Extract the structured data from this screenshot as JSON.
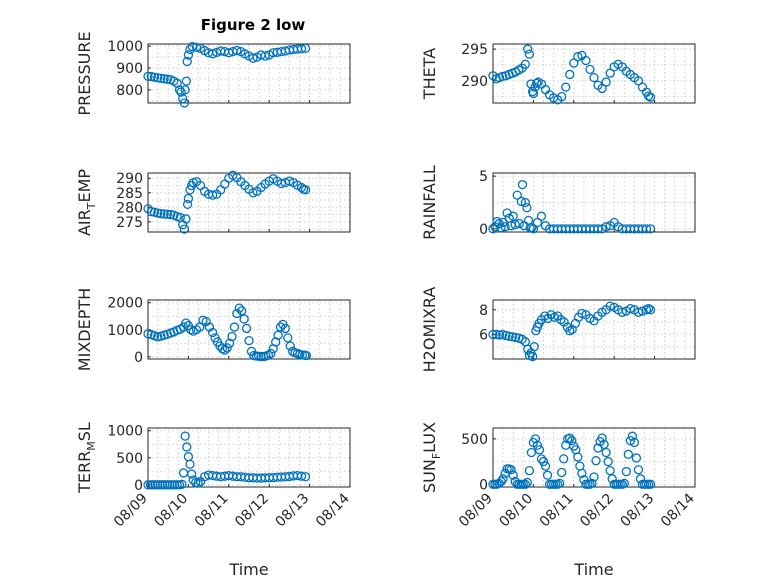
{
  "figure": {
    "title": "Figure 2 low",
    "marker_color": "#0072bd"
  },
  "chart_data": [
    {
      "type": "scatter",
      "id": "pressure",
      "title": "Figure 2 low",
      "ylabel": "PRESSURE",
      "xlabel": "",
      "xlim": [
        0,
        5
      ],
      "ylim": [
        740,
        1010
      ],
      "yticks": [
        800,
        900,
        1000
      ],
      "xticks": [
        0,
        1,
        2,
        3,
        4,
        5
      ],
      "xtick_labels": [
        "08/09",
        "08/10",
        "08/11",
        "08/12",
        "08/13",
        "08/14"
      ],
      "x": [
        0.0,
        0.08,
        0.16,
        0.24,
        0.32,
        0.4,
        0.48,
        0.56,
        0.64,
        0.72,
        0.78,
        0.82,
        0.86,
        0.9,
        0.92,
        0.95,
        0.97,
        1.0,
        1.04,
        1.1,
        1.2,
        1.3,
        1.4,
        1.5,
        1.6,
        1.7,
        1.8,
        1.9,
        2.0,
        2.1,
        2.2,
        2.3,
        2.4,
        2.5,
        2.6,
        2.7,
        2.8,
        2.9,
        3.0,
        3.1,
        3.2,
        3.3,
        3.4,
        3.5,
        3.6,
        3.7,
        3.8,
        3.9
      ],
      "y": [
        862,
        861,
        858,
        855,
        853,
        851,
        849,
        847,
        840,
        830,
        800,
        790,
        760,
        740,
        800,
        840,
        930,
        960,
        985,
        998,
        995,
        990,
        980,
        970,
        965,
        972,
        978,
        975,
        970,
        975,
        980,
        975,
        965,
        955,
        945,
        950,
        960,
        955,
        960,
        970,
        972,
        975,
        978,
        982,
        985,
        987,
        988,
        990
      ]
    },
    {
      "type": "scatter",
      "id": "theta",
      "ylabel": "THETA",
      "xlabel": "",
      "xlim": [
        0,
        5
      ],
      "ylim": [
        286.5,
        295.8
      ],
      "yticks": [
        290,
        295
      ],
      "xticks": [
        0,
        1,
        2,
        3,
        4,
        5
      ],
      "xtick_labels": [
        "08/09",
        "08/10",
        "08/11",
        "08/12",
        "08/13",
        "08/14"
      ],
      "x": [
        0.0,
        0.08,
        0.16,
        0.24,
        0.32,
        0.4,
        0.48,
        0.56,
        0.64,
        0.72,
        0.8,
        0.86,
        0.9,
        0.94,
        0.98,
        1.0,
        1.04,
        1.08,
        1.12,
        1.2,
        1.3,
        1.4,
        1.5,
        1.6,
        1.7,
        1.8,
        1.9,
        2.0,
        2.1,
        2.2,
        2.3,
        2.4,
        2.5,
        2.6,
        2.7,
        2.8,
        2.9,
        3.0,
        3.1,
        3.2,
        3.3,
        3.4,
        3.5,
        3.6,
        3.7,
        3.8,
        3.85,
        3.9
      ],
      "y": [
        290.8,
        290.3,
        290.5,
        290.7,
        290.8,
        291.0,
        291.2,
        291.4,
        291.7,
        292.0,
        292.6,
        295.0,
        294.2,
        289.5,
        288.3,
        288.0,
        289.0,
        289.6,
        289.8,
        289.5,
        288.6,
        287.8,
        287.3,
        287.0,
        287.5,
        289.0,
        291.0,
        292.8,
        293.8,
        294.0,
        293.2,
        291.8,
        290.5,
        289.3,
        288.8,
        289.8,
        291.2,
        292.2,
        292.6,
        292.2,
        291.5,
        291.0,
        290.5,
        290.0,
        289.0,
        288.2,
        287.6,
        287.4
      ]
    },
    {
      "type": "scatter",
      "id": "air_temp",
      "ylabel_main": "AIR",
      "ylabel_sub": "T",
      "ylabel_rest": "EMP",
      "xlabel": "",
      "xlim": [
        0,
        5
      ],
      "ylim": [
        271.5,
        291.8
      ],
      "yticks": [
        275,
        280,
        285,
        290
      ],
      "xticks": [
        0,
        1,
        2,
        3,
        4,
        5
      ],
      "xtick_labels": [
        "08/09",
        "08/10",
        "08/11",
        "08/12",
        "08/13",
        "08/14"
      ],
      "x": [
        0.0,
        0.08,
        0.16,
        0.24,
        0.32,
        0.4,
        0.48,
        0.56,
        0.64,
        0.72,
        0.8,
        0.86,
        0.9,
        0.94,
        0.98,
        1.0,
        1.04,
        1.08,
        1.12,
        1.2,
        1.3,
        1.4,
        1.5,
        1.6,
        1.7,
        1.8,
        1.9,
        2.0,
        2.1,
        2.2,
        2.3,
        2.4,
        2.5,
        2.6,
        2.7,
        2.8,
        2.9,
        3.0,
        3.1,
        3.2,
        3.3,
        3.4,
        3.5,
        3.6,
        3.7,
        3.8,
        3.85,
        3.9
      ],
      "y": [
        279.5,
        278.5,
        278.3,
        278.0,
        277.8,
        277.7,
        277.6,
        277.5,
        277.3,
        276.8,
        276.5,
        274.0,
        272.5,
        276.0,
        281.0,
        283.0,
        286.0,
        287.5,
        288.5,
        288.8,
        287.5,
        285.5,
        284.5,
        284.2,
        284.5,
        286.0,
        288.0,
        290.0,
        291.0,
        290.2,
        288.8,
        287.5,
        286.2,
        285.0,
        285.5,
        286.8,
        288.0,
        289.0,
        289.8,
        289.0,
        288.2,
        288.5,
        289.0,
        288.5,
        287.6,
        286.8,
        286.2,
        286.0
      ]
    },
    {
      "type": "scatter",
      "id": "rainfall",
      "ylabel": "RAINFALL",
      "xlabel": "",
      "xlim": [
        0,
        5
      ],
      "ylim": [
        -0.3,
        5.3
      ],
      "yticks": [
        0,
        5
      ],
      "xticks": [
        0,
        1,
        2,
        3,
        4,
        5
      ],
      "xtick_labels": [
        "08/09",
        "08/10",
        "08/11",
        "08/12",
        "08/13",
        "08/14"
      ],
      "x": [
        0.0,
        0.05,
        0.1,
        0.15,
        0.2,
        0.25,
        0.3,
        0.35,
        0.4,
        0.45,
        0.5,
        0.55,
        0.6,
        0.65,
        0.7,
        0.73,
        0.77,
        0.8,
        0.84,
        0.88,
        0.92,
        0.96,
        1.0,
        1.1,
        1.2,
        1.3,
        1.4,
        1.5,
        1.6,
        1.7,
        1.8,
        1.9,
        2.0,
        2.1,
        2.2,
        2.3,
        2.4,
        2.5,
        2.6,
        2.7,
        2.8,
        2.9,
        3.0,
        3.1,
        3.2,
        3.3,
        3.4,
        3.5,
        3.6,
        3.7,
        3.8,
        3.9
      ],
      "y": [
        0.0,
        0.2,
        0.7,
        0.5,
        0.1,
        0.6,
        0.2,
        1.5,
        1.0,
        0.3,
        1.2,
        0.4,
        3.2,
        0.5,
        2.6,
        4.2,
        0.3,
        2.5,
        2.0,
        0.8,
        0.1,
        0.1,
        0.0,
        0.6,
        1.2,
        0.3,
        0.0,
        0.0,
        0.0,
        0.0,
        0.0,
        0.0,
        0.0,
        0.0,
        0.0,
        0.0,
        0.0,
        0.0,
        0.0,
        0.0,
        0.2,
        0.3,
        0.6,
        0.2,
        0.0,
        0.0,
        0.0,
        0.0,
        0.0,
        0.0,
        0.0,
        0.0
      ]
    },
    {
      "type": "scatter",
      "id": "mixdepth",
      "ylabel": "MIXDEPTH",
      "xlabel": "",
      "xlim": [
        0,
        5
      ],
      "ylim": [
        -80,
        2100
      ],
      "yticks": [
        0,
        1000,
        2000
      ],
      "xticks": [
        0,
        1,
        2,
        3,
        4,
        5
      ],
      "xtick_labels": [
        "08/09",
        "08/10",
        "08/11",
        "08/12",
        "08/13",
        "08/14"
      ],
      "x": [
        0.0,
        0.08,
        0.16,
        0.24,
        0.32,
        0.4,
        0.48,
        0.56,
        0.64,
        0.72,
        0.8,
        0.88,
        0.94,
        1.0,
        1.06,
        1.12,
        1.2,
        1.28,
        1.36,
        1.44,
        1.52,
        1.6,
        1.66,
        1.72,
        1.78,
        1.84,
        1.9,
        1.96,
        2.02,
        2.08,
        2.14,
        2.2,
        2.26,
        2.32,
        2.38,
        2.44,
        2.5,
        2.56,
        2.62,
        2.68,
        2.74,
        2.8,
        2.86,
        2.92,
        2.98,
        3.04,
        3.1,
        3.16,
        3.22,
        3.28,
        3.34,
        3.4,
        3.46,
        3.52,
        3.58,
        3.64,
        3.7,
        3.76,
        3.82,
        3.88,
        3.92
      ],
      "y": [
        850,
        820,
        780,
        740,
        760,
        800,
        830,
        880,
        920,
        980,
        1020,
        1100,
        1250,
        1150,
        1000,
        950,
        1000,
        1100,
        1350,
        1300,
        1100,
        900,
        700,
        550,
        400,
        300,
        250,
        330,
        500,
        750,
        1100,
        1600,
        1800,
        1700,
        1400,
        1050,
        600,
        200,
        50,
        30,
        20,
        15,
        10,
        30,
        60,
        120,
        300,
        550,
        800,
        1100,
        1200,
        1050,
        700,
        400,
        200,
        150,
        120,
        90,
        70,
        60,
        50
      ]
    },
    {
      "type": "scatter",
      "id": "h2omixra",
      "ylabel": "H2OMIXRA",
      "xlabel": "",
      "xlim": [
        0,
        5
      ],
      "ylim": [
        4.0,
        8.8
      ],
      "yticks": [
        6,
        8
      ],
      "xticks": [
        0,
        1,
        2,
        3,
        4,
        5
      ],
      "xtick_labels": [
        "08/09",
        "08/10",
        "08/11",
        "08/12",
        "08/13",
        "08/14"
      ],
      "x": [
        0.0,
        0.08,
        0.16,
        0.24,
        0.32,
        0.4,
        0.48,
        0.56,
        0.64,
        0.72,
        0.8,
        0.86,
        0.9,
        0.94,
        0.98,
        1.02,
        1.06,
        1.1,
        1.14,
        1.2,
        1.28,
        1.36,
        1.44,
        1.52,
        1.6,
        1.68,
        1.76,
        1.84,
        1.9,
        1.96,
        2.04,
        2.12,
        2.2,
        2.3,
        2.4,
        2.5,
        2.6,
        2.7,
        2.8,
        2.9,
        3.0,
        3.1,
        3.2,
        3.3,
        3.4,
        3.5,
        3.6,
        3.7,
        3.8,
        3.85,
        3.9
      ],
      "y": [
        6.0,
        6.0,
        5.95,
        6.0,
        5.9,
        5.85,
        5.8,
        5.75,
        5.7,
        5.6,
        5.4,
        4.8,
        4.3,
        4.5,
        4.2,
        5.0,
        6.3,
        6.6,
        6.9,
        7.2,
        7.5,
        7.3,
        7.6,
        7.4,
        7.5,
        7.2,
        7.0,
        6.6,
        6.3,
        6.4,
        6.9,
        7.4,
        7.7,
        7.6,
        7.3,
        7.1,
        7.5,
        7.8,
        8.0,
        8.3,
        8.2,
        8.0,
        7.8,
        7.9,
        8.1,
        8.0,
        7.8,
        7.9,
        8.0,
        8.1,
        8.0
      ]
    },
    {
      "type": "scatter",
      "id": "terr_msl",
      "ylabel_main": "TERR",
      "ylabel_sub": "M",
      "ylabel_rest": "SL",
      "xlabel": "Time",
      "xlim": [
        0,
        5
      ],
      "ylim": [
        -40,
        1050
      ],
      "yticks": [
        0,
        500,
        1000
      ],
      "xticks": [
        0,
        1,
        2,
        3,
        4,
        5
      ],
      "xtick_labels": [
        "08/09",
        "08/10",
        "08/11",
        "08/12",
        "08/13",
        "08/14"
      ],
      "x": [
        0.0,
        0.06,
        0.12,
        0.18,
        0.24,
        0.3,
        0.36,
        0.42,
        0.48,
        0.54,
        0.6,
        0.66,
        0.72,
        0.78,
        0.84,
        0.88,
        0.92,
        0.96,
        1.0,
        1.04,
        1.08,
        1.12,
        1.18,
        1.24,
        1.3,
        1.4,
        1.5,
        1.6,
        1.7,
        1.8,
        1.9,
        2.0,
        2.1,
        2.2,
        2.3,
        2.4,
        2.5,
        2.6,
        2.7,
        2.8,
        2.9,
        3.0,
        3.1,
        3.2,
        3.3,
        3.4,
        3.5,
        3.6,
        3.7,
        3.8,
        3.9
      ],
      "y": [
        0,
        0,
        0,
        0,
        0,
        0,
        0,
        0,
        0,
        0,
        0,
        0,
        0,
        0,
        10,
        220,
        900,
        700,
        520,
        380,
        200,
        90,
        40,
        30,
        60,
        150,
        180,
        170,
        160,
        150,
        160,
        170,
        160,
        150,
        150,
        140,
        130,
        130,
        125,
        125,
        130,
        130,
        135,
        140,
        145,
        150,
        155,
        165,
        170,
        160,
        150
      ]
    },
    {
      "type": "scatter",
      "id": "sun_flux",
      "ylabel_main": "SUN",
      "ylabel_sub": "F",
      "ylabel_rest": "LUX",
      "xlabel": "Time",
      "xlim": [
        0,
        5
      ],
      "ylim": [
        -30,
        620
      ],
      "yticks": [
        0,
        500
      ],
      "xticks": [
        0,
        1,
        2,
        3,
        4,
        5
      ],
      "xtick_labels": [
        "08/09",
        "08/10",
        "08/11",
        "08/12",
        "08/13",
        "08/14"
      ],
      "x": [
        0.0,
        0.05,
        0.1,
        0.15,
        0.2,
        0.25,
        0.3,
        0.35,
        0.4,
        0.45,
        0.5,
        0.55,
        0.6,
        0.65,
        0.7,
        0.75,
        0.8,
        0.85,
        0.9,
        0.95,
        1.0,
        1.05,
        1.1,
        1.15,
        1.2,
        1.25,
        1.3,
        1.35,
        1.4,
        1.45,
        1.5,
        1.55,
        1.6,
        1.65,
        1.7,
        1.75,
        1.8,
        1.85,
        1.9,
        1.95,
        2.0,
        2.05,
        2.1,
        2.15,
        2.2,
        2.25,
        2.3,
        2.35,
        2.4,
        2.45,
        2.5,
        2.55,
        2.6,
        2.65,
        2.7,
        2.75,
        2.8,
        2.85,
        2.9,
        2.95,
        3.0,
        3.05,
        3.1,
        3.15,
        3.2,
        3.25,
        3.3,
        3.35,
        3.4,
        3.45,
        3.5,
        3.55,
        3.6,
        3.65,
        3.7,
        3.75,
        3.8,
        3.85,
        3.9
      ],
      "y": [
        0,
        0,
        0,
        10,
        30,
        60,
        120,
        170,
        170,
        160,
        100,
        30,
        0,
        0,
        0,
        0,
        0,
        20,
        150,
        350,
        460,
        500,
        430,
        380,
        280,
        250,
        200,
        100,
        0,
        0,
        0,
        0,
        0,
        10,
        130,
        280,
        430,
        500,
        510,
        480,
        420,
        380,
        300,
        200,
        120,
        50,
        0,
        0,
        0,
        10,
        80,
        260,
        400,
        470,
        510,
        440,
        350,
        250,
        150,
        60,
        0,
        0,
        0,
        0,
        0,
        10,
        140,
        330,
        480,
        530,
        460,
        290,
        160,
        60,
        0,
        0,
        0,
        0,
        0
      ]
    }
  ]
}
